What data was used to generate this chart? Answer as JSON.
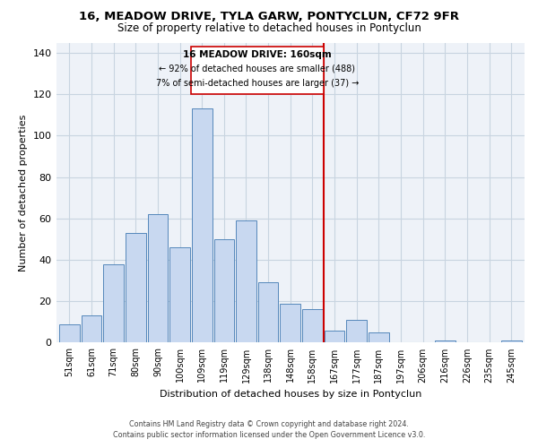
{
  "title": "16, MEADOW DRIVE, TYLA GARW, PONTYCLUN, CF72 9FR",
  "subtitle": "Size of property relative to detached houses in Pontyclun",
  "xlabel": "Distribution of detached houses by size in Pontyclun",
  "ylabel": "Number of detached properties",
  "bar_labels": [
    "51sqm",
    "61sqm",
    "71sqm",
    "80sqm",
    "90sqm",
    "100sqm",
    "109sqm",
    "119sqm",
    "129sqm",
    "138sqm",
    "148sqm",
    "158sqm",
    "167sqm",
    "177sqm",
    "187sqm",
    "197sqm",
    "206sqm",
    "216sqm",
    "226sqm",
    "235sqm",
    "245sqm"
  ],
  "bar_values": [
    9,
    13,
    38,
    53,
    62,
    46,
    113,
    50,
    59,
    29,
    19,
    16,
    6,
    11,
    5,
    0,
    0,
    1,
    0,
    0,
    1
  ],
  "bar_color": "#c8d8f0",
  "bar_edge_color": "#5588bb",
  "vline_color": "#cc0000",
  "annotation_title": "16 MEADOW DRIVE: 160sqm",
  "annotation_line1": "← 92% of detached houses are smaller (488)",
  "annotation_line2": "7% of semi-detached houses are larger (37) →",
  "ylim": [
    0,
    145
  ],
  "yticks": [
    0,
    20,
    40,
    60,
    80,
    100,
    120,
    140
  ],
  "footer1": "Contains HM Land Registry data © Crown copyright and database right 2024.",
  "footer2": "Contains public sector information licensed under the Open Government Licence v3.0.",
  "background_color": "#ffffff",
  "grid_color": "#c8d4e0",
  "plot_bg_color": "#eef2f8"
}
